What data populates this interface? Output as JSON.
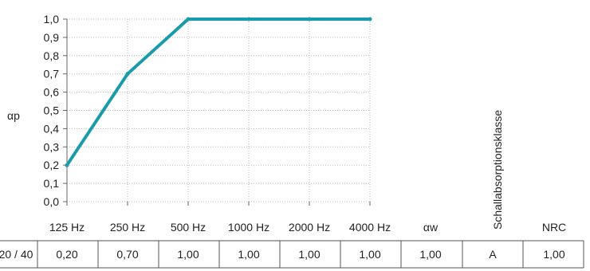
{
  "chart_data": {
    "type": "line",
    "title": "",
    "xlabel": "",
    "ylabel": "αp",
    "categories": [
      "125 Hz",
      "250 Hz",
      "500 Hz",
      "1000 Hz",
      "2000 Hz",
      "4000 Hz"
    ],
    "series": [
      {
        "values": [
          0.2,
          0.7,
          1.0,
          1.0,
          1.0,
          1.0
        ]
      }
    ],
    "ylim": [
      0.0,
      1.0
    ],
    "yticks": [
      "0,0",
      "0,1",
      "0,2",
      "0,3",
      "0,4",
      "0,5",
      "0,6",
      "0,7",
      "0,8",
      "0,9",
      "1,0"
    ],
    "grid": true,
    "line_color": "#1a9bab"
  },
  "table": {
    "headers": {
      "alpha_w": "αw",
      "class": "Schallabsorptionsklasse",
      "nrc": "NRC"
    },
    "row": [
      "20 / 40",
      "0,20",
      "0,70",
      "1,00",
      "1,00",
      "1,00",
      "1,00",
      "1,00",
      "A",
      "1,00"
    ]
  }
}
